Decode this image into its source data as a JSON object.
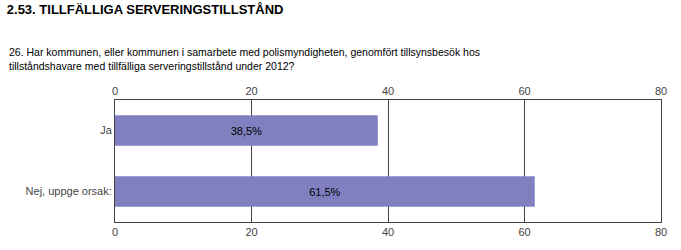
{
  "chart_data": {
    "type": "bar",
    "orientation": "horizontal",
    "title": "2.53. TILLFÄLLIGA SERVERINGSTILLSTÅND",
    "subtitle": "26. Har kommunen, eller kommunen i samarbete med polismyndigheten, genomfört tillsynsbesök hos\ntillståndshavare med tillfälliga serveringstillstånd under 2012?",
    "categories": [
      "Ja",
      "Nej, uppge orsak:"
    ],
    "values": [
      38.5,
      61.5
    ],
    "value_labels": [
      "38,5%",
      "61,5%"
    ],
    "data_labels": true,
    "color": "#8080c0",
    "xlim": [
      0,
      80
    ],
    "xticks": [
      0,
      20,
      40,
      60,
      80
    ],
    "grid": true
  }
}
